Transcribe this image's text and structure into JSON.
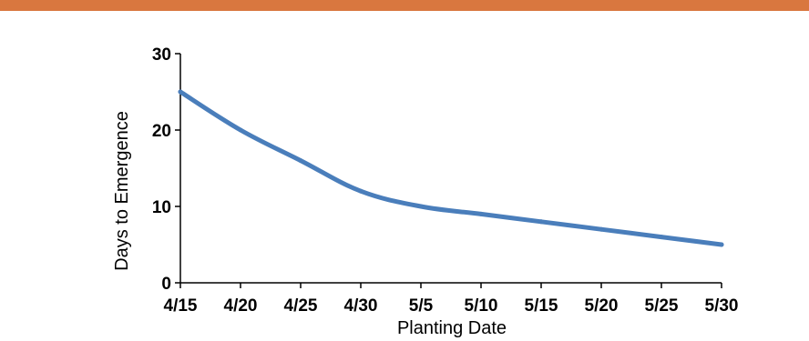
{
  "colors": {
    "accent_bar": "#D9773F",
    "line": "#4A7EBB",
    "axis": "#000000"
  },
  "chart_data": {
    "type": "line",
    "title": "",
    "xlabel": "Planting Date",
    "ylabel": "Days to Emergence",
    "categories": [
      "4/15",
      "4/20",
      "4/25",
      "4/30",
      "5/5",
      "5/10",
      "5/15",
      "5/20",
      "5/25",
      "5/30"
    ],
    "yticks": [
      "0",
      "10",
      "20",
      "30"
    ],
    "ylim": [
      0,
      30
    ],
    "grid": false,
    "legend": "none",
    "series": [
      {
        "values": [
          25,
          20,
          16,
          12,
          10,
          9,
          8,
          7,
          6,
          5
        ]
      }
    ]
  }
}
